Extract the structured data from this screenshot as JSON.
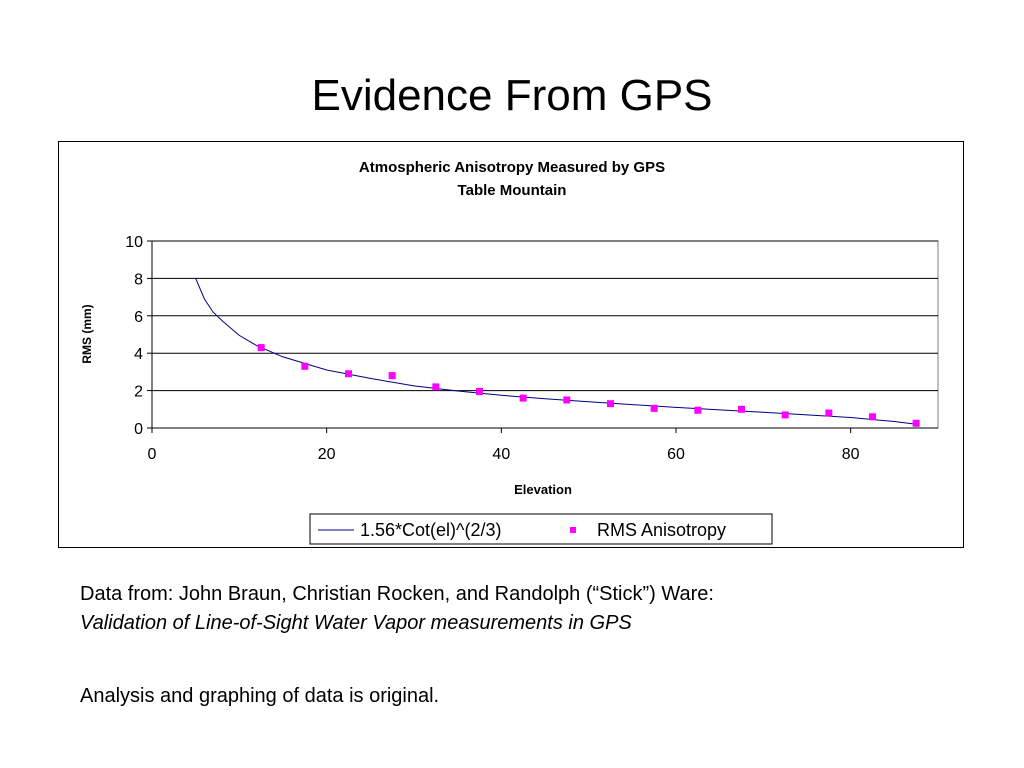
{
  "slide": {
    "title": "Evidence From GPS",
    "caption_line1": "Data from: John Braun, Christian Rocken, and Randolph (“Stick”) Ware:",
    "caption_line2": "Validation of Line-of-Sight Water Vapor measurements in GPS",
    "note": "Analysis and graphing of data is original."
  },
  "chart_data": {
    "type": "scatter",
    "title": "Atmospheric Anisotropy Measured by GPS",
    "subtitle": "Table Mountain",
    "xlabel": "Elevation",
    "ylabel": "RMS (mm)",
    "xlim": [
      0,
      90
    ],
    "ylim": [
      0,
      10
    ],
    "xticks": [
      0,
      20,
      40,
      60,
      80
    ],
    "yticks": [
      0,
      2,
      4,
      6,
      8,
      10
    ],
    "grid": "horizontal",
    "legend": "bottom-center",
    "series": [
      {
        "name": "1.56*Cot(el)^(2/3)",
        "kind": "line",
        "color": "#000080",
        "x": [
          5,
          6,
          7,
          8,
          9,
          10,
          12,
          15,
          20,
          25,
          30,
          35,
          40,
          45,
          50,
          55,
          60,
          65,
          70,
          75,
          80,
          85,
          87.5
        ],
        "y": [
          8.0,
          6.9,
          6.2,
          5.75,
          5.35,
          4.95,
          4.4,
          3.8,
          3.1,
          2.65,
          2.25,
          1.98,
          1.75,
          1.56,
          1.4,
          1.25,
          1.1,
          0.97,
          0.84,
          0.7,
          0.56,
          0.35,
          0.2
        ]
      },
      {
        "name": "RMS Anisotropy",
        "kind": "points",
        "color": "#ff00ff",
        "x": [
          12.5,
          17.5,
          22.5,
          27.5,
          32.5,
          37.5,
          42.5,
          47.5,
          52.5,
          57.5,
          62.5,
          67.5,
          72.5,
          77.5,
          82.5,
          87.5
        ],
        "y": [
          4.3,
          3.3,
          2.9,
          2.8,
          2.2,
          1.95,
          1.6,
          1.5,
          1.3,
          1.05,
          0.95,
          1.0,
          0.7,
          0.8,
          0.6,
          0.25
        ]
      }
    ]
  }
}
